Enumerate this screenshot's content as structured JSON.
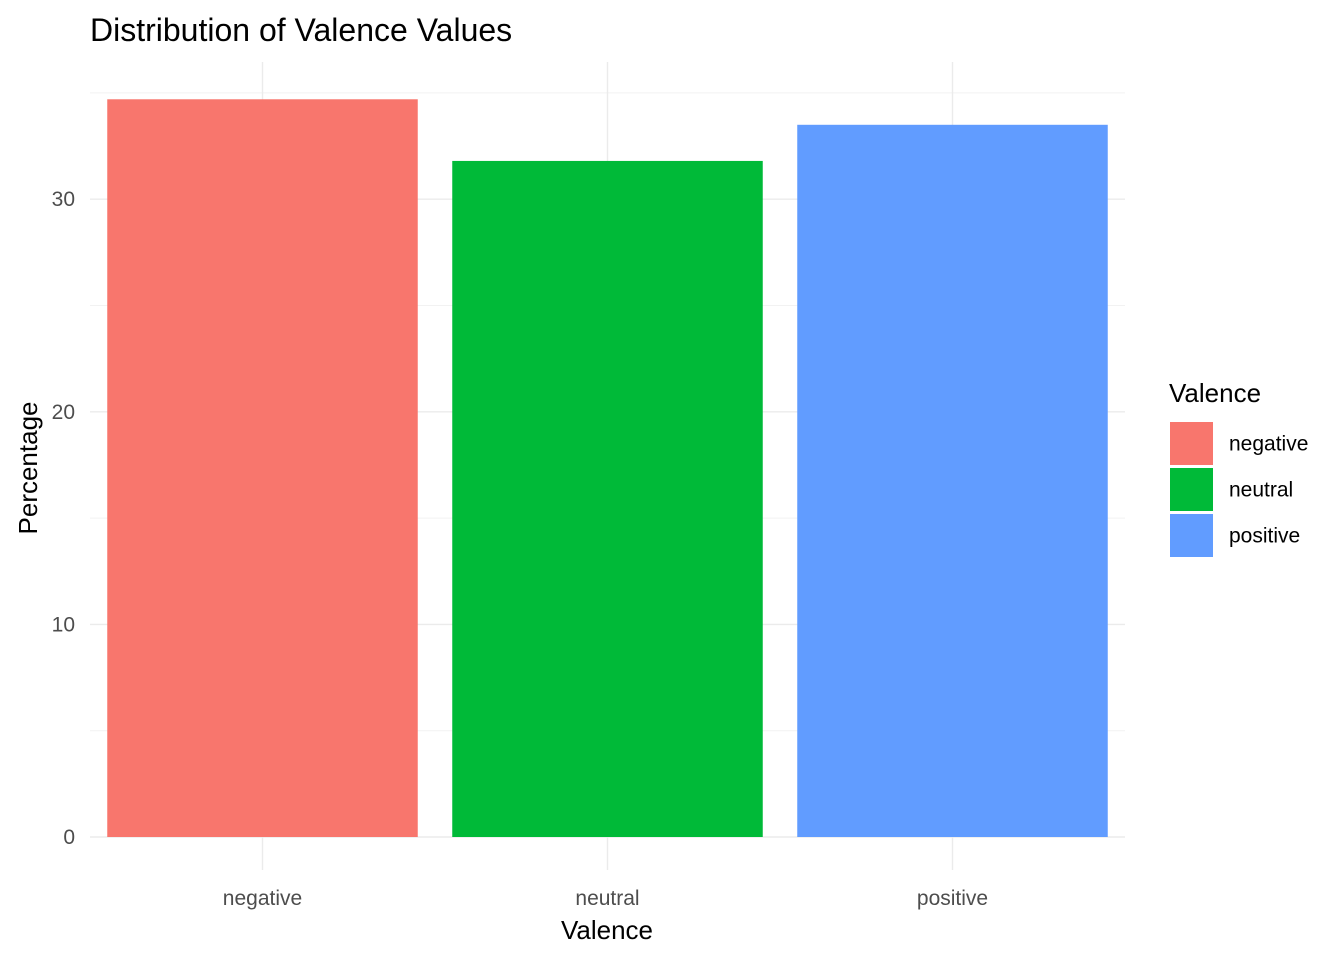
{
  "chart_data": {
    "type": "bar",
    "title": "Distribution of Valence Values",
    "xlabel": "Valence",
    "ylabel": "Percentage",
    "categories": [
      "negative",
      "neutral",
      "positive"
    ],
    "values": [
      34.7,
      31.8,
      33.5
    ],
    "colors": [
      "#F8766D",
      "#00BA38",
      "#619CFF"
    ],
    "ylim": [
      0,
      36.3
    ],
    "yticks": [
      0,
      10,
      20,
      30
    ],
    "grid": true,
    "legend": {
      "title": "Valence",
      "position": "right",
      "entries": [
        "negative",
        "neutral",
        "positive"
      ]
    }
  }
}
